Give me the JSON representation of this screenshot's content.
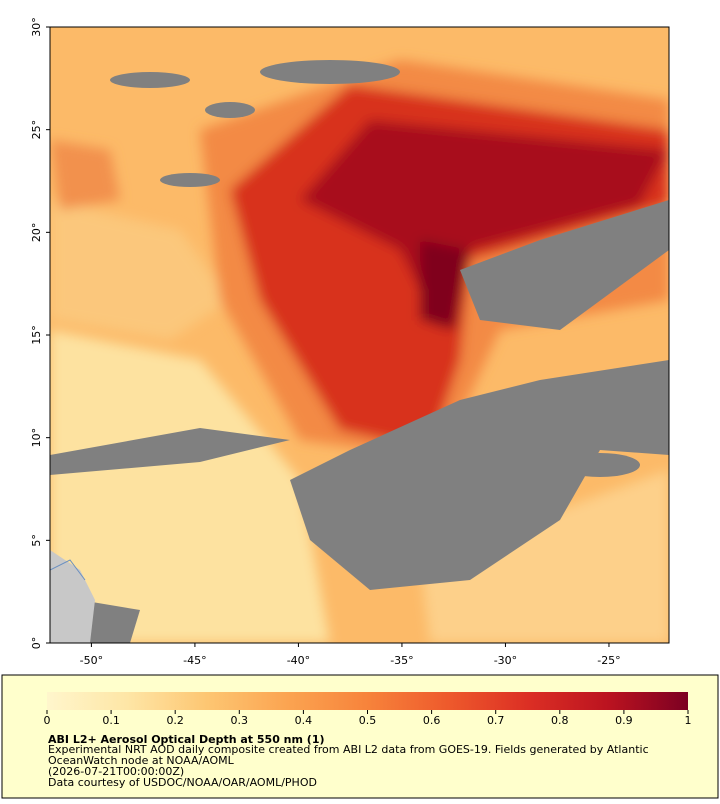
{
  "map": {
    "xlim": [
      -52,
      -22.1
    ],
    "ylim": [
      0,
      30
    ],
    "xticks": [
      {
        "value": -50,
        "label": "-50°"
      },
      {
        "value": -45,
        "label": "-45°"
      },
      {
        "value": -40,
        "label": "-40°"
      },
      {
        "value": -35,
        "label": "-35°"
      },
      {
        "value": -30,
        "label": "-30°"
      },
      {
        "value": -25,
        "label": "-25°"
      }
    ],
    "yticks": [
      {
        "value": 0,
        "label": "0°"
      },
      {
        "value": 5,
        "label": "5°"
      },
      {
        "value": 10,
        "label": "10°"
      },
      {
        "value": 15,
        "label": "15°"
      },
      {
        "value": 20,
        "label": "20°"
      },
      {
        "value": 25,
        "label": "25°"
      },
      {
        "value": 30,
        "label": "30°"
      }
    ]
  },
  "colorbar": {
    "lim": [
      0,
      1
    ],
    "ticks": [
      0,
      0.1,
      0.2,
      0.3,
      0.4,
      0.5,
      0.6,
      0.7,
      0.8,
      0.9,
      1
    ],
    "colormap": [
      "#fff6cc",
      "#fee6a6",
      "#fdc672",
      "#fba451",
      "#f7833b",
      "#ee5a2c",
      "#dc2f24",
      "#bb1320",
      "#7c0022"
    ],
    "title": "ABI L2+ Aerosol Optical Depth at 550 nm (1)",
    "notes": [
      "Experimental NRT AOD daily composite created from ABI L2 data from GOES-19. Fields generated by Atlantic",
      "OceanWatch node at NOAA/AOML",
      "(2026-07-21T00:00:00Z)",
      "Data courtesy of USDOC/NOAA/OAR/AOML/PHOD"
    ]
  }
}
